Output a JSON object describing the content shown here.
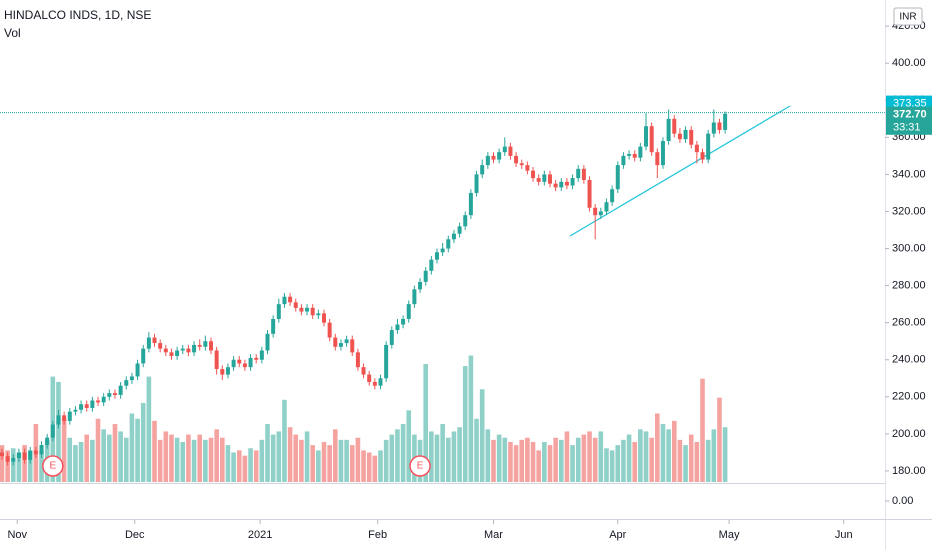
{
  "chart_data": {
    "type": "candlestick",
    "title": "HINDALCO INDS, 1D, NSE",
    "volume_label": "Vol",
    "currency": "INR",
    "up_color": "#26a69a",
    "down_color": "#ef5350",
    "vol_up_color": "#8fd0c8",
    "vol_down_color": "#f5a3a1",
    "grid": false,
    "xlim": [
      -0.35,
      156.3
    ],
    "xticks": [
      {
        "value": 2.7,
        "label": "Nov"
      },
      {
        "value": 23.5,
        "label": "Dec"
      },
      {
        "value": 45.7,
        "label": "2021"
      },
      {
        "value": 66.5,
        "label": "Feb"
      },
      {
        "value": 87,
        "label": "Mar"
      },
      {
        "value": 109,
        "label": "Apr"
      },
      {
        "value": 128.7,
        "label": "May"
      },
      {
        "value": 149,
        "label": "Jun"
      }
    ],
    "ylim": [
      173.5,
      434.1
    ],
    "yticks": [
      {
        "value": 180,
        "label": "180.00"
      },
      {
        "value": 200,
        "label": "200.00"
      },
      {
        "value": 220,
        "label": "220.00"
      },
      {
        "value": 240,
        "label": "240.00"
      },
      {
        "value": 260,
        "label": "260.00"
      },
      {
        "value": 280,
        "label": "280.00"
      },
      {
        "value": 300,
        "label": "300.00"
      },
      {
        "value": 320,
        "label": "320.00"
      },
      {
        "value": 340,
        "label": "340.00"
      },
      {
        "value": 360,
        "label": "360.00"
      },
      {
        "value": 380,
        "label": "380.00"
      },
      {
        "value": 400,
        "label": "400.00"
      },
      {
        "value": 420,
        "label": "420.00"
      }
    ],
    "vlim": [
      0,
      130
    ],
    "pane2_ticks": [
      {
        "value": 0,
        "label": "0.00"
      }
    ],
    "price_labels": [
      {
        "value": 373.35,
        "label": "373.35"
      },
      {
        "value": 372.7,
        "label": "372.70",
        "countdown": "33:31"
      }
    ],
    "events": [
      {
        "index": 9,
        "label": "E"
      },
      {
        "index": 74,
        "label": "E"
      }
    ],
    "open": [
      190,
      188,
      185,
      187,
      190,
      186,
      191,
      189,
      194,
      198,
      205,
      210,
      207,
      212,
      213,
      216,
      214,
      218,
      217,
      220,
      222,
      221,
      226,
      229,
      231,
      238,
      246,
      252,
      249,
      246,
      244,
      242,
      245,
      246,
      244,
      248,
      247,
      250,
      245,
      235,
      232,
      236,
      240,
      238,
      236,
      241,
      240,
      245,
      254,
      262,
      270,
      274,
      271,
      268,
      266,
      268,
      264,
      265,
      260,
      252,
      247,
      249,
      251,
      244,
      236,
      232,
      228,
      226,
      230,
      248,
      256,
      259,
      262,
      270,
      278,
      282,
      288,
      294,
      298,
      300,
      305,
      308,
      312,
      318,
      330,
      340,
      345,
      350,
      348,
      352,
      355,
      350,
      346,
      345,
      342,
      338,
      336,
      340,
      335,
      333,
      336,
      334,
      338,
      343,
      337,
      322,
      318,
      320,
      325,
      332,
      345,
      350,
      351,
      349,
      355,
      366,
      352,
      345,
      358,
      370,
      362,
      359,
      364,
      356,
      352,
      348,
      362,
      368,
      364
    ],
    "high": [
      192,
      190,
      189,
      192,
      192,
      193,
      193,
      196,
      200,
      207,
      213,
      212,
      214,
      215,
      218,
      218,
      220,
      220,
      222,
      224,
      224,
      228,
      231,
      233,
      240,
      248,
      255,
      254,
      251,
      248,
      246,
      247,
      248,
      248,
      250,
      251,
      253,
      252,
      247,
      237,
      238,
      242,
      242,
      240,
      243,
      243,
      247,
      256,
      264,
      273,
      276,
      276,
      273,
      270,
      270,
      270,
      267,
      267,
      262,
      254,
      251,
      253,
      253,
      246,
      238,
      234,
      230,
      232,
      250,
      258,
      262,
      264,
      272,
      280,
      284,
      290,
      296,
      300,
      303,
      307,
      310,
      314,
      320,
      332,
      342,
      348,
      352,
      352,
      354,
      360,
      357,
      352,
      348,
      347,
      344,
      340,
      342,
      342,
      337,
      338,
      338,
      340,
      345,
      345,
      339,
      324,
      322,
      327,
      334,
      347,
      352,
      353,
      353,
      357,
      373,
      368,
      354,
      360,
      375,
      372,
      365,
      366,
      366,
      358,
      354,
      364,
      375,
      370,
      374
    ],
    "low": [
      186,
      183,
      183,
      185,
      184,
      184,
      187,
      187,
      192,
      196,
      203,
      205,
      205,
      210,
      211,
      212,
      212,
      215,
      215,
      218,
      219,
      219,
      224,
      227,
      229,
      236,
      244,
      247,
      244,
      242,
      240,
      240,
      243,
      242,
      242,
      245,
      245,
      243,
      232,
      229,
      230,
      234,
      236,
      234,
      234,
      238,
      238,
      243,
      252,
      260,
      268,
      269,
      266,
      264,
      264,
      262,
      262,
      258,
      250,
      245,
      245,
      247,
      242,
      234,
      230,
      226,
      224,
      224,
      228,
      246,
      254,
      257,
      260,
      268,
      276,
      280,
      286,
      292,
      296,
      298,
      303,
      306,
      310,
      316,
      328,
      338,
      343,
      346,
      346,
      350,
      348,
      344,
      343,
      340,
      336,
      334,
      334,
      333,
      331,
      331,
      332,
      332,
      336,
      335,
      320,
      305,
      316,
      318,
      323,
      330,
      343,
      348,
      347,
      347,
      353,
      350,
      338,
      343,
      356,
      360,
      357,
      357,
      354,
      346,
      346,
      346,
      360,
      362,
      362
    ],
    "close": [
      188,
      185,
      187,
      190,
      186,
      191,
      189,
      194,
      198,
      205,
      210,
      207,
      212,
      213,
      216,
      214,
      218,
      217,
      220,
      222,
      221,
      226,
      229,
      231,
      238,
      246,
      252,
      249,
      246,
      244,
      242,
      245,
      246,
      244,
      248,
      247,
      250,
      245,
      235,
      232,
      236,
      240,
      238,
      236,
      241,
      240,
      245,
      254,
      262,
      270,
      274,
      271,
      268,
      266,
      268,
      264,
      265,
      260,
      252,
      247,
      249,
      251,
      244,
      236,
      232,
      228,
      226,
      230,
      248,
      256,
      259,
      262,
      270,
      278,
      282,
      288,
      294,
      298,
      300,
      305,
      308,
      312,
      318,
      330,
      340,
      345,
      350,
      348,
      352,
      355,
      350,
      346,
      345,
      342,
      338,
      336,
      340,
      335,
      333,
      336,
      334,
      338,
      343,
      337,
      322,
      318,
      320,
      325,
      332,
      345,
      350,
      351,
      349,
      355,
      366,
      352,
      345,
      358,
      370,
      362,
      359,
      364,
      356,
      352,
      348,
      362,
      368,
      364,
      372.7
    ],
    "volume": [
      35,
      30,
      32,
      28,
      35,
      30,
      55,
      30,
      40,
      100,
      95,
      60,
      42,
      35,
      38,
      45,
      40,
      60,
      50,
      45,
      55,
      48,
      42,
      65,
      60,
      75,
      100,
      58,
      40,
      48,
      45,
      42,
      38,
      45,
      40,
      45,
      40,
      42,
      50,
      42,
      35,
      28,
      30,
      25,
      32,
      30,
      40,
      55,
      45,
      48,
      78,
      52,
      45,
      40,
      48,
      35,
      30,
      38,
      35,
      50,
      40,
      40,
      35,
      42,
      30,
      28,
      25,
      30,
      40,
      45,
      50,
      55,
      68,
      45,
      40,
      112,
      48,
      45,
      55,
      42,
      48,
      52,
      110,
      120,
      60,
      88,
      50,
      40,
      45,
      42,
      38,
      35,
      40,
      42,
      38,
      30,
      38,
      35,
      42,
      40,
      48,
      35,
      42,
      45,
      48,
      42,
      48,
      32,
      30,
      35,
      40,
      45,
      38,
      50,
      48,
      42,
      65,
      55,
      50,
      58,
      40,
      35,
      45,
      38,
      98,
      40,
      50,
      80,
      52
    ]
  }
}
